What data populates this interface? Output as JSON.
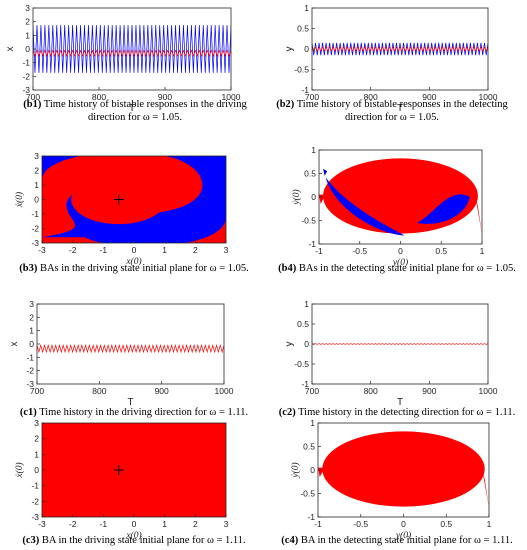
{
  "colors": {
    "red": "#ff0000",
    "blue": "#0000ff",
    "axis": "#262626"
  },
  "captions": [
    {
      "id": "b1",
      "tag": "(b1)",
      "text": " Time history of bistable responses in the driving direction for ω = 1.05."
    },
    {
      "id": "b2",
      "tag": "(b2)",
      "text": " Time history of bistable responses in the detecting direction for ω = 1.05."
    },
    {
      "id": "b3",
      "tag": "(b3)",
      "text": " BAs in the driving state initial plane for ω = 1.05."
    },
    {
      "id": "b4",
      "tag": "(b4)",
      "text": " BAs in the detecting state initial plane for ω = 1.05."
    },
    {
      "id": "c1",
      "tag": "(c1)",
      "text": " Time history in the driving direction for ω = 1.11."
    },
    {
      "id": "c2",
      "tag": "(c2)",
      "text": " Time history in the detecting direction for ω = 1.11."
    },
    {
      "id": "c3",
      "tag": "(c3)",
      "text": " BA in the driving state initial plane for ω = 1.11."
    },
    {
      "id": "c4",
      "tag": "(c4)",
      "text": " BA in the detecting state initial plane for ω = 1.11."
    }
  ],
  "chart_data": [
    {
      "id": "b1",
      "type": "line",
      "xlabel": "T",
      "ylabel": "x",
      "xlim": [
        700,
        1000
      ],
      "ylim": [
        -3,
        3
      ],
      "xticks": [
        "700",
        "800",
        "900",
        "1000"
      ],
      "yticks": [
        "3",
        "2",
        "1",
        "0",
        "-1",
        "-2",
        "-3"
      ],
      "series": [
        {
          "color": "blue",
          "mean": 0,
          "amplitude": 1.75,
          "cycles": 50
        },
        {
          "color": "red",
          "mean": -0.3,
          "amplitude": 0.2,
          "cycles": 50
        }
      ]
    },
    {
      "id": "b2",
      "type": "line",
      "xlabel": "T",
      "ylabel": "y",
      "xlim": [
        700,
        1000
      ],
      "ylim": [
        -1,
        1
      ],
      "xticks": [
        "700",
        "800",
        "900",
        "1000"
      ],
      "yticks": [
        "1",
        "0.5",
        "0",
        "-0.5",
        "-1"
      ],
      "series": [
        {
          "color": "blue",
          "mean": 0,
          "amplitude": 0.15,
          "cycles": 50
        },
        {
          "color": "red",
          "mean": 0,
          "amplitude": 0.05,
          "cycles": 50
        }
      ]
    },
    {
      "id": "b3",
      "type": "heatmap",
      "xlabel": "x(0)",
      "ylabel": "ẋ(0)",
      "xlim": [
        -3,
        3
      ],
      "ylim": [
        -3,
        3
      ],
      "xticks": [
        "-3",
        "-2",
        "-1",
        "0",
        "1",
        "2",
        "3"
      ],
      "yticks": [
        "3",
        "2",
        "1",
        "0",
        "-1",
        "-2",
        "-3"
      ],
      "basins": [
        "red",
        "blue"
      ],
      "marker": {
        "x": -0.5,
        "y": 0
      }
    },
    {
      "id": "b4",
      "type": "scatter",
      "xlabel": "y(0)",
      "ylabel": "ẏ(0)",
      "xlim": [
        -1,
        1
      ],
      "ylim": [
        -1,
        1
      ],
      "xticks": [
        "-1",
        "-0.5",
        "0",
        "0.5",
        "1"
      ],
      "yticks": [
        "1",
        "0.5",
        "0",
        "-0.5",
        "-1"
      ],
      "basins": [
        "red",
        "blue"
      ]
    },
    {
      "id": "c1",
      "type": "line",
      "xlabel": "T",
      "ylabel": "x",
      "xlim": [
        700,
        1000
      ],
      "ylim": [
        -3,
        3
      ],
      "xticks": [
        "700",
        "800",
        "900",
        "1000"
      ],
      "yticks": [
        "3",
        "2",
        "1",
        "0",
        "-1",
        "-2",
        "-3"
      ],
      "series": [
        {
          "color": "red",
          "mean": -0.35,
          "amplitude": 0.25,
          "cycles": 50
        }
      ]
    },
    {
      "id": "c2",
      "type": "line",
      "xlabel": "T",
      "ylabel": "y",
      "xlim": [
        700,
        1000
      ],
      "ylim": [
        -1,
        1
      ],
      "xticks": [
        "700",
        "800",
        "900",
        "1000"
      ],
      "yticks": [
        "1",
        "0.5",
        "0",
        "-0.5",
        "-1"
      ],
      "series": [
        {
          "color": "red",
          "mean": 0,
          "amplitude": 0.01,
          "cycles": 50
        }
      ]
    },
    {
      "id": "c3",
      "type": "heatmap",
      "xlabel": "x(0)",
      "ylabel": "ẋ(0)",
      "xlim": [
        -3,
        3
      ],
      "ylim": [
        -3,
        3
      ],
      "xticks": [
        "-3",
        "-2",
        "-1",
        "0",
        "1",
        "2",
        "3"
      ],
      "yticks": [
        "3",
        "2",
        "1",
        "0",
        "-1",
        "-2",
        "-3"
      ],
      "basins": [
        "red"
      ],
      "marker": {
        "x": -0.5,
        "y": 0
      }
    },
    {
      "id": "c4",
      "type": "scatter",
      "xlabel": "y(0)",
      "ylabel": "ẏ(0)",
      "xlim": [
        -1,
        1
      ],
      "ylim": [
        -1,
        1
      ],
      "xticks": [
        "-1",
        "-0.5",
        "0",
        "0.5",
        "1"
      ],
      "yticks": [
        "1",
        "0.5",
        "0",
        "-0.5",
        "-1"
      ],
      "basins": [
        "red"
      ]
    }
  ]
}
